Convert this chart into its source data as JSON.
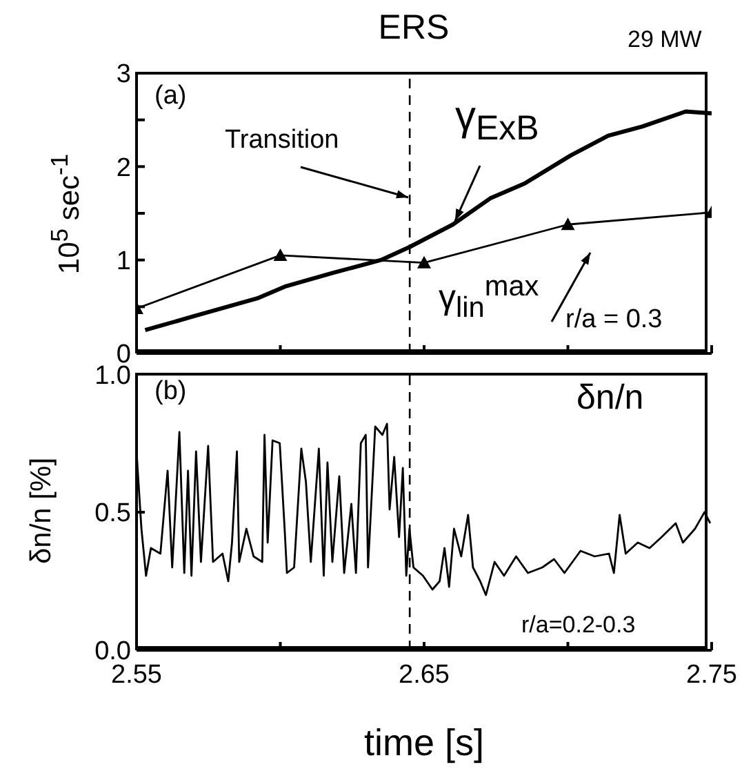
{
  "chart_data": [
    {
      "type": "line",
      "title": "ERS",
      "ylabel": "10$^{5}$ sec$^{-1}$",
      "annotations": [
        "29 MW",
        "(a)",
        "r/a = 0.3"
      ],
      "xlim": [
        2.55,
        2.75
      ],
      "xticks": [
        {
          "value": 2.55,
          "label": null
        },
        {
          "value": 2.6,
          "label": null
        },
        {
          "value": 2.65,
          "label": null
        },
        {
          "value": 2.7,
          "label": null
        },
        {
          "value": 2.75,
          "label": null
        }
      ],
      "ylim": [
        0,
        3
      ],
      "yticks": [
        0,
        {
          "value": 0.5,
          "label": null
        },
        1,
        {
          "value": 1.5,
          "label": null
        },
        2,
        {
          "value": 2.5,
          "label": null
        },
        3
      ],
      "tick_labels": "y",
      "ref_lines": [
        {
          "axis": "x",
          "value": 2.645,
          "label": "Transition",
          "line_style": "dashed",
          "color": "#000000"
        }
      ],
      "series": [
        {
          "name": "γ$_{ExB}$",
          "color": "#000000",
          "marker": "none",
          "x": [
            2.553,
            2.569,
            2.592,
            2.602,
            2.618,
            2.635,
            2.645,
            2.66,
            2.673,
            2.685,
            2.701,
            2.714,
            2.726,
            2.741,
            2.75
          ],
          "values": [
            0.25,
            0.39,
            0.59,
            0.72,
            0.86,
            1.0,
            1.14,
            1.38,
            1.66,
            1.82,
            2.12,
            2.33,
            2.43,
            2.59,
            2.57
          ]
        },
        {
          "name": "γ$_{lin}$$^{max}$",
          "color": "#000000",
          "marker": "triangle",
          "x": [
            2.55,
            2.6,
            2.65,
            2.7,
            2.75
          ],
          "values": [
            0.48,
            1.05,
            0.97,
            1.38,
            1.51
          ]
        }
      ]
    },
    {
      "type": "line",
      "xlabel": "time [s]",
      "ylabel": "δn/n [%]",
      "annotations": [
        "(b)",
        "r/a=0.2-0.3"
      ],
      "xlim": [
        2.55,
        2.75
      ],
      "xticks": [
        2.55,
        {
          "value": 2.6,
          "label": null
        },
        2.65,
        {
          "value": 2.7,
          "label": null
        },
        2.75
      ],
      "ylim": [
        0,
        1
      ],
      "yticks": [
        {
          "value": 0,
          "label": "0.0"
        },
        {
          "value": 0.5,
          "label": "0.5"
        },
        {
          "value": 1,
          "label": "1.0"
        }
      ],
      "ref_lines": [
        {
          "axis": "x",
          "value": 2.645,
          "line_style": "dashed",
          "color": "#000000"
        }
      ],
      "series": [
        {
          "name": "δn/n",
          "color": "#000000",
          "marker": "none",
          "x": [
            2.55,
            2.5517,
            2.5533,
            2.555,
            2.5583,
            2.5608,
            2.5624,
            2.5649,
            2.5666,
            2.5679,
            2.5691,
            2.5707,
            2.5724,
            2.5749,
            2.5766,
            2.5799,
            2.5819,
            2.5832,
            2.5849,
            2.5857,
            2.5882,
            2.5907,
            2.5937,
            2.5945,
            2.5956,
            2.5973,
            2.5998,
            2.6015,
            2.6023,
            2.6048,
            2.6073,
            2.6089,
            2.6106,
            2.6134,
            2.6151,
            2.6164,
            2.6181,
            2.6205,
            2.6222,
            2.6247,
            2.6263,
            2.628,
            2.6297,
            2.6305,
            2.633,
            2.6355,
            2.6371,
            2.638,
            2.6396,
            2.6413,
            2.6426,
            2.6438,
            2.6449,
            2.6463,
            2.6496,
            2.6529,
            2.6554,
            2.6571,
            2.6587,
            2.6604,
            2.6629,
            2.6653,
            2.667,
            2.6695,
            2.6715,
            2.6745,
            2.6778,
            2.682,
            2.6861,
            2.6911,
            2.6952,
            2.6988,
            2.7044,
            2.7093,
            2.7143,
            2.716,
            2.718,
            2.7201,
            2.7243,
            2.7284,
            2.7326,
            2.7375,
            2.74,
            2.7442,
            2.7475,
            2.7495
          ],
          "values": [
            0.72,
            0.44,
            0.27,
            0.37,
            0.35,
            0.65,
            0.3,
            0.79,
            0.28,
            0.65,
            0.27,
            0.72,
            0.32,
            0.74,
            0.32,
            0.35,
            0.25,
            0.39,
            0.72,
            0.32,
            0.44,
            0.34,
            0.32,
            0.78,
            0.39,
            0.76,
            0.75,
            0.44,
            0.28,
            0.3,
            0.73,
            0.61,
            0.32,
            0.73,
            0.27,
            0.68,
            0.32,
            0.63,
            0.28,
            0.53,
            0.28,
            0.75,
            0.78,
            0.3,
            0.81,
            0.78,
            0.82,
            0.51,
            0.7,
            0.41,
            0.66,
            0.27,
            0.44,
            0.3,
            0.27,
            0.22,
            0.25,
            0.37,
            0.23,
            0.44,
            0.34,
            0.49,
            0.3,
            0.25,
            0.2,
            0.32,
            0.27,
            0.34,
            0.28,
            0.3,
            0.33,
            0.28,
            0.36,
            0.34,
            0.35,
            0.28,
            0.49,
            0.35,
            0.39,
            0.37,
            0.41,
            0.46,
            0.39,
            0.44,
            0.5,
            0.46
          ]
        }
      ]
    }
  ]
}
